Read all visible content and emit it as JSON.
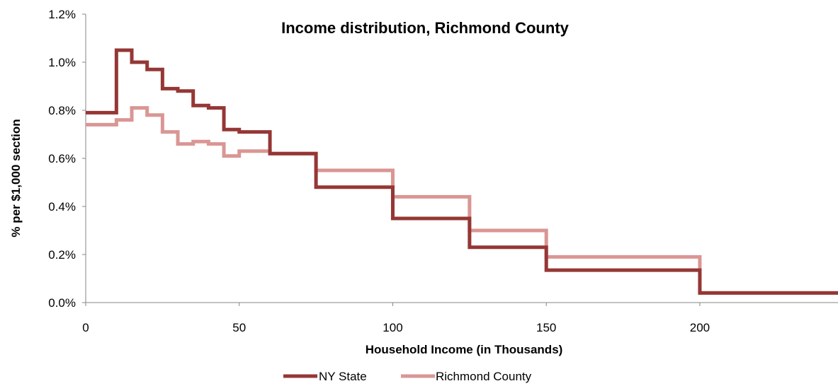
{
  "chart_data": {
    "type": "line",
    "step": true,
    "title": "Income distribution, Richmond County",
    "xlabel": "Household Income (in Thousands)",
    "ylabel": "% per $1,000 section",
    "xlim": [
      0,
      245
    ],
    "ylim": [
      0,
      0.012
    ],
    "xticks": [
      0,
      50,
      100,
      150,
      200
    ],
    "xtick_labels": [
      "0",
      "50",
      "100",
      "150",
      "200"
    ],
    "yticks": [
      0,
      0.002,
      0.004,
      0.006,
      0.008,
      0.01,
      0.012
    ],
    "ytick_labels": [
      "0.0%",
      "0.2%",
      "0.4%",
      "0.6%",
      "0.8%",
      "1.0%",
      "1.2%"
    ],
    "grid": false,
    "legend_position": "bottom",
    "bin_edges": [
      0,
      10,
      15,
      20,
      25,
      30,
      35,
      40,
      45,
      50,
      60,
      75,
      100,
      125,
      150,
      200,
      245
    ],
    "series": [
      {
        "name": "NY State",
        "color": "#953735",
        "values": [
          0.0079,
          0.0105,
          0.01,
          0.0097,
          0.0089,
          0.0088,
          0.0082,
          0.0081,
          0.0072,
          0.0071,
          0.0062,
          0.0048,
          0.0035,
          0.0023,
          0.00135,
          0.0004
        ]
      },
      {
        "name": "Richmond County",
        "color": "#DA9694",
        "values": [
          0.0074,
          0.0076,
          0.0081,
          0.0078,
          0.0071,
          0.0066,
          0.0067,
          0.0066,
          0.0061,
          0.0063,
          0.0062,
          0.0055,
          0.0044,
          0.003,
          0.0019,
          0.0004
        ]
      }
    ]
  }
}
